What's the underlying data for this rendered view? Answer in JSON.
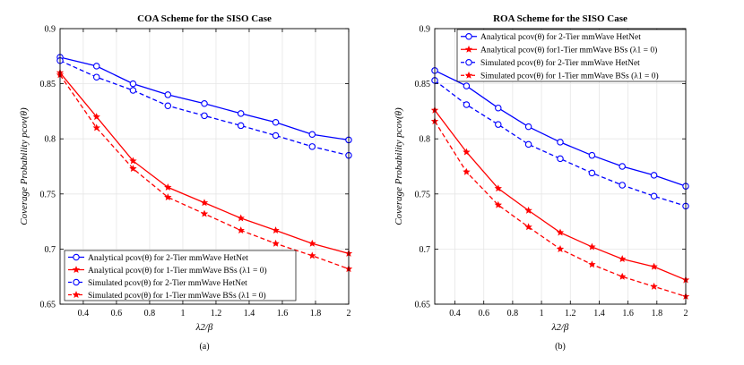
{
  "chart_data": [
    {
      "type": "line",
      "title": "COA Scheme for the SISO Case",
      "xlabel": "λ2/β",
      "ylabel": "Coverage Probability pcov(θ)",
      "caption": "(a)",
      "xlim": [
        0.26,
        2
      ],
      "ylim": [
        0.65,
        0.9
      ],
      "xticks": [
        "0.4",
        "0.6",
        "0.8",
        "1",
        "1.2",
        "1.4",
        "1.6",
        "1.8",
        "2"
      ],
      "yticks": [
        "0.65",
        "0.7",
        "0.75",
        "0.8",
        "0.85",
        "0.9"
      ],
      "grid": true,
      "legend_position": "bottom-left",
      "x": [
        0.26,
        0.48,
        0.7,
        0.91,
        1.13,
        1.35,
        1.56,
        1.78,
        2.0
      ],
      "series": [
        {
          "name": "Analytical pcov(θ) for 2-Tier mmWave HetNet",
          "color": "#0000ff",
          "marker": "circle",
          "dash": "solid",
          "values": [
            0.874,
            0.866,
            0.85,
            0.84,
            0.832,
            0.823,
            0.815,
            0.804,
            0.799
          ]
        },
        {
          "name": "Analytical pcov(θ) for 1-Tier mmWave BSs (λ1 = 0)",
          "color": "#ff0000",
          "marker": "star",
          "dash": "solid",
          "values": [
            0.86,
            0.82,
            0.78,
            0.756,
            0.742,
            0.728,
            0.717,
            0.705,
            0.696
          ]
        },
        {
          "name": "Simulated pcov(θ) for 2-Tier mmWave HetNet",
          "color": "#0000ff",
          "marker": "circle",
          "dash": "dashed",
          "values": [
            0.871,
            0.856,
            0.844,
            0.83,
            0.821,
            0.812,
            0.803,
            0.793,
            0.785
          ]
        },
        {
          "name": "Simulated pcov(θ) for 1-Tier mmWave BSs (λ1 = 0)",
          "color": "#ff0000",
          "marker": "star",
          "dash": "dashed",
          "values": [
            0.858,
            0.81,
            0.773,
            0.747,
            0.732,
            0.717,
            0.705,
            0.694,
            0.682
          ]
        }
      ]
    },
    {
      "type": "line",
      "title": "ROA Scheme for the SISO Case",
      "xlabel": "λ2/β",
      "ylabel": "Coverage Probability pcov(θ)",
      "caption": "(b)",
      "xlim": [
        0.26,
        2
      ],
      "ylim": [
        0.65,
        0.9
      ],
      "xticks": [
        "0.4",
        "0.6",
        "0.8",
        "1",
        "1.2",
        "1.4",
        "1.6",
        "1.8",
        "2"
      ],
      "yticks": [
        "0.65",
        "0.7",
        "0.75",
        "0.8",
        "0.85",
        "0.9"
      ],
      "grid": true,
      "legend_position": "top-right",
      "x": [
        0.26,
        0.48,
        0.7,
        0.91,
        1.13,
        1.35,
        1.56,
        1.78,
        2.0
      ],
      "series": [
        {
          "name": "Analytical pcov(θ) for 2-Tier mmWave HetNet",
          "color": "#0000ff",
          "marker": "circle",
          "dash": "solid",
          "values": [
            0.862,
            0.848,
            0.828,
            0.811,
            0.797,
            0.785,
            0.775,
            0.767,
            0.757
          ]
        },
        {
          "name": "Analytical pcov(θ) for1-Tier mmWave BSs (λ1 = 0)",
          "color": "#ff0000",
          "marker": "star",
          "dash": "solid",
          "values": [
            0.826,
            0.788,
            0.755,
            0.735,
            0.715,
            0.702,
            0.691,
            0.684,
            0.672
          ]
        },
        {
          "name": "Simulated pcov(θ) for 2-Tier mmWave HetNet",
          "color": "#0000ff",
          "marker": "circle",
          "dash": "dashed",
          "values": [
            0.853,
            0.831,
            0.813,
            0.795,
            0.782,
            0.769,
            0.758,
            0.748,
            0.739
          ]
        },
        {
          "name": "Simulated pcov(θ) for 1-Tier mmWave BSs (λ1 = 0)",
          "color": "#ff0000",
          "marker": "star",
          "dash": "dashed",
          "values": [
            0.816,
            0.77,
            0.74,
            0.72,
            0.7,
            0.686,
            0.675,
            0.666,
            0.657
          ]
        }
      ]
    }
  ]
}
